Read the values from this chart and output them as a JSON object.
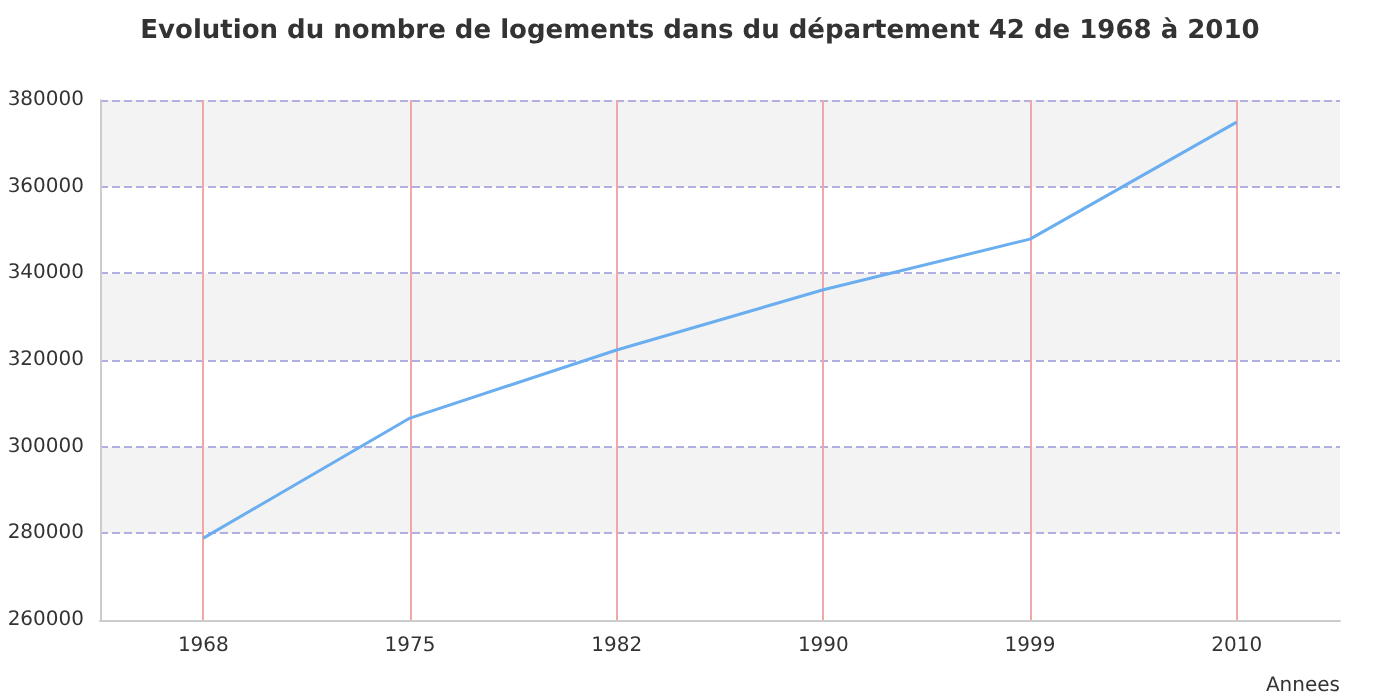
{
  "chart_data": {
    "type": "line",
    "title": "Evolution du nombre de logements dans du département 42 de 1968 à 2010",
    "xlabel": "Annees",
    "categories": [
      "1968",
      "1975",
      "1982",
      "1990",
      "1999",
      "2010"
    ],
    "series": [
      {
        "color": "#6aaef0",
        "values": [
          278900,
          306600,
          322300,
          336200,
          347900,
          374900
        ]
      }
    ],
    "ylim": [
      260000,
      380000
    ],
    "yticks": [
      260000,
      280000,
      300000,
      320000,
      340000,
      360000,
      380000
    ],
    "grid": true,
    "marker": "none",
    "line_style": "solid"
  }
}
